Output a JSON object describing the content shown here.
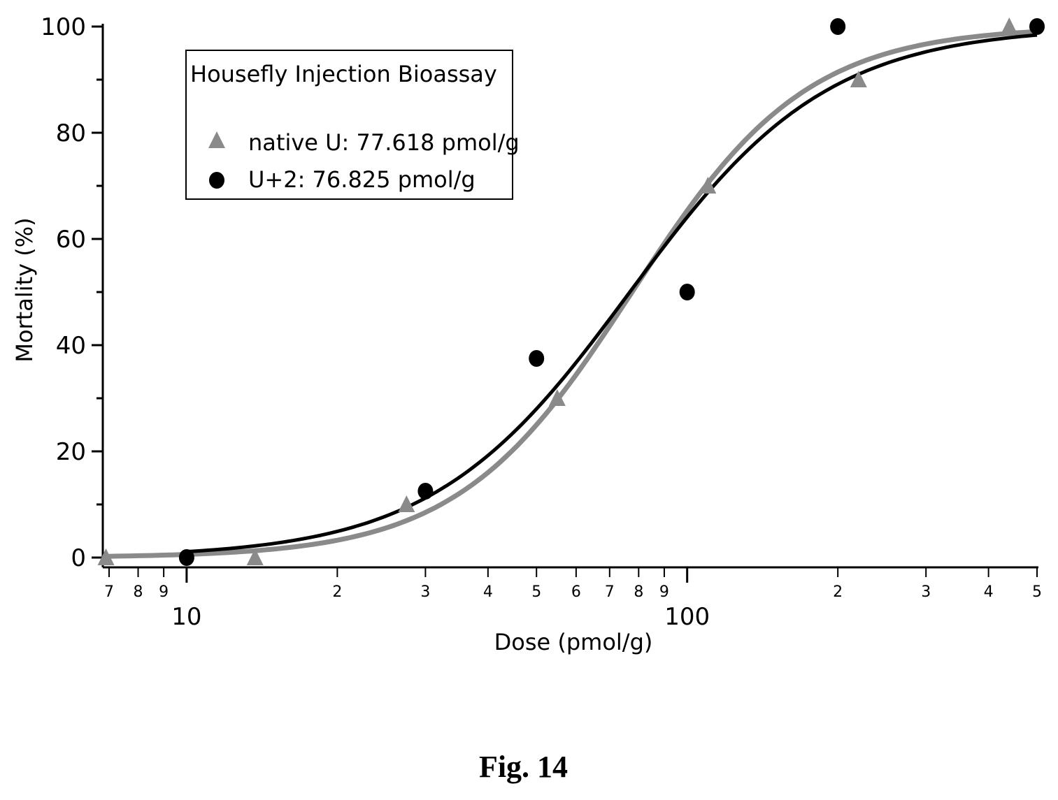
{
  "caption": "Fig. 14",
  "chart_data": {
    "type": "scatter",
    "xlabel": "Dose (pmol/g)",
    "ylabel": "Mortality (%)",
    "x_scale": "log",
    "xlim": [
      6.8,
      500
    ],
    "ylim": [
      0,
      100
    ],
    "y_ticks": [
      0,
      20,
      40,
      60,
      80,
      100
    ],
    "x_ticks_major": [
      {
        "value": 10,
        "label": "10"
      },
      {
        "value": 100,
        "label": "100"
      }
    ],
    "x_ticks_minor": [
      {
        "value": 7,
        "label": "7"
      },
      {
        "value": 8,
        "label": "8"
      },
      {
        "value": 9,
        "label": "9"
      },
      {
        "value": 20,
        "label": "2"
      },
      {
        "value": 30,
        "label": "3"
      },
      {
        "value": 40,
        "label": "4"
      },
      {
        "value": 50,
        "label": "5"
      },
      {
        "value": 60,
        "label": "6"
      },
      {
        "value": 70,
        "label": "7"
      },
      {
        "value": 80,
        "label": "8"
      },
      {
        "value": 90,
        "label": "9"
      },
      {
        "value": 200,
        "label": "2"
      },
      {
        "value": 300,
        "label": "3"
      },
      {
        "value": 400,
        "label": "4"
      },
      {
        "value": 500,
        "label": "5"
      }
    ],
    "legend": {
      "title": "Housefly Injection Bioassay",
      "position": "top-left",
      "entries": [
        {
          "marker": "triangle",
          "label": "native U: 77.618 pmol/g"
        },
        {
          "marker": "circle",
          "label": "U+2: 76.825 pmol/g"
        }
      ]
    },
    "series": [
      {
        "name": "native U",
        "marker": "triangle",
        "color": "#8a8a8a",
        "points": [
          {
            "x": 6.9,
            "y": 0
          },
          {
            "x": 13.7,
            "y": 0
          },
          {
            "x": 27.5,
            "y": 10
          },
          {
            "x": 55,
            "y": 30
          },
          {
            "x": 110,
            "y": 70
          },
          {
            "x": 220,
            "y": 90
          },
          {
            "x": 440,
            "y": 100
          }
        ],
        "fit_ec50": 77.618,
        "fit_hill": 2.5,
        "fit_range": [
          6.8,
          500
        ]
      },
      {
        "name": "U+2",
        "marker": "circle",
        "color": "#000000",
        "points": [
          {
            "x": 10,
            "y": 0
          },
          {
            "x": 30,
            "y": 12.5
          },
          {
            "x": 50,
            "y": 37.5
          },
          {
            "x": 100,
            "y": 50
          },
          {
            "x": 200,
            "y": 100
          },
          {
            "x": 500,
            "y": 100
          }
        ],
        "fit_ec50": 76.825,
        "fit_hill": 2.2,
        "fit_range": [
          10,
          500
        ]
      }
    ]
  }
}
